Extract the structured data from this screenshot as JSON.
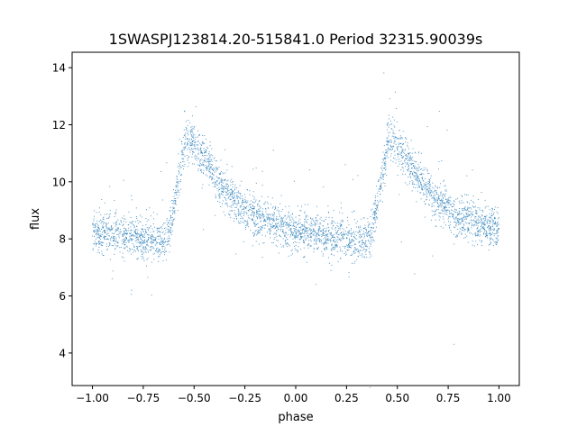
{
  "chart_data": {
    "type": "scatter",
    "title": "1SWASPJ123814.20-515841.0 Period 32315.90039s",
    "xlabel": "phase",
    "ylabel": "flux",
    "xlim": [
      -1.1,
      1.1
    ],
    "ylim": [
      2.86,
      14.54
    ],
    "xticks": [
      -1.0,
      -0.75,
      -0.5,
      -0.25,
      0.0,
      0.25,
      0.5,
      0.75,
      1.0
    ],
    "xtick_labels": [
      "−1.00",
      "−0.75",
      "−0.50",
      "−0.25",
      "0.00",
      "0.25",
      "0.50",
      "0.75",
      "1.00"
    ],
    "yticks": [
      4,
      6,
      8,
      10,
      12,
      14
    ],
    "ytick_labels": [
      "4",
      "6",
      "8",
      "10",
      "12",
      "14"
    ],
    "grid": false,
    "color": "#1f77b4",
    "series": [
      {
        "name": "flux",
        "trend_phase": [
          -1.0,
          -0.85,
          -0.75,
          -0.66,
          -0.62,
          -0.58,
          -0.54,
          -0.5,
          -0.45,
          -0.4,
          -0.3,
          -0.2,
          -0.1,
          0.0,
          0.15,
          0.25,
          0.34,
          0.38,
          0.42,
          0.46,
          0.5,
          0.55,
          0.6,
          0.7,
          0.8,
          0.9,
          1.0
        ],
        "trend_flux": [
          8.3,
          8.1,
          8.0,
          7.9,
          8.3,
          10.0,
          11.6,
          11.3,
          10.8,
          10.2,
          9.3,
          8.8,
          8.5,
          8.3,
          8.1,
          8.0,
          7.9,
          8.3,
          10.0,
          11.6,
          11.3,
          10.8,
          10.2,
          9.3,
          8.8,
          8.5,
          8.3
        ],
        "scatter_sigma": 0.35,
        "n_points": 4000
      }
    ]
  }
}
